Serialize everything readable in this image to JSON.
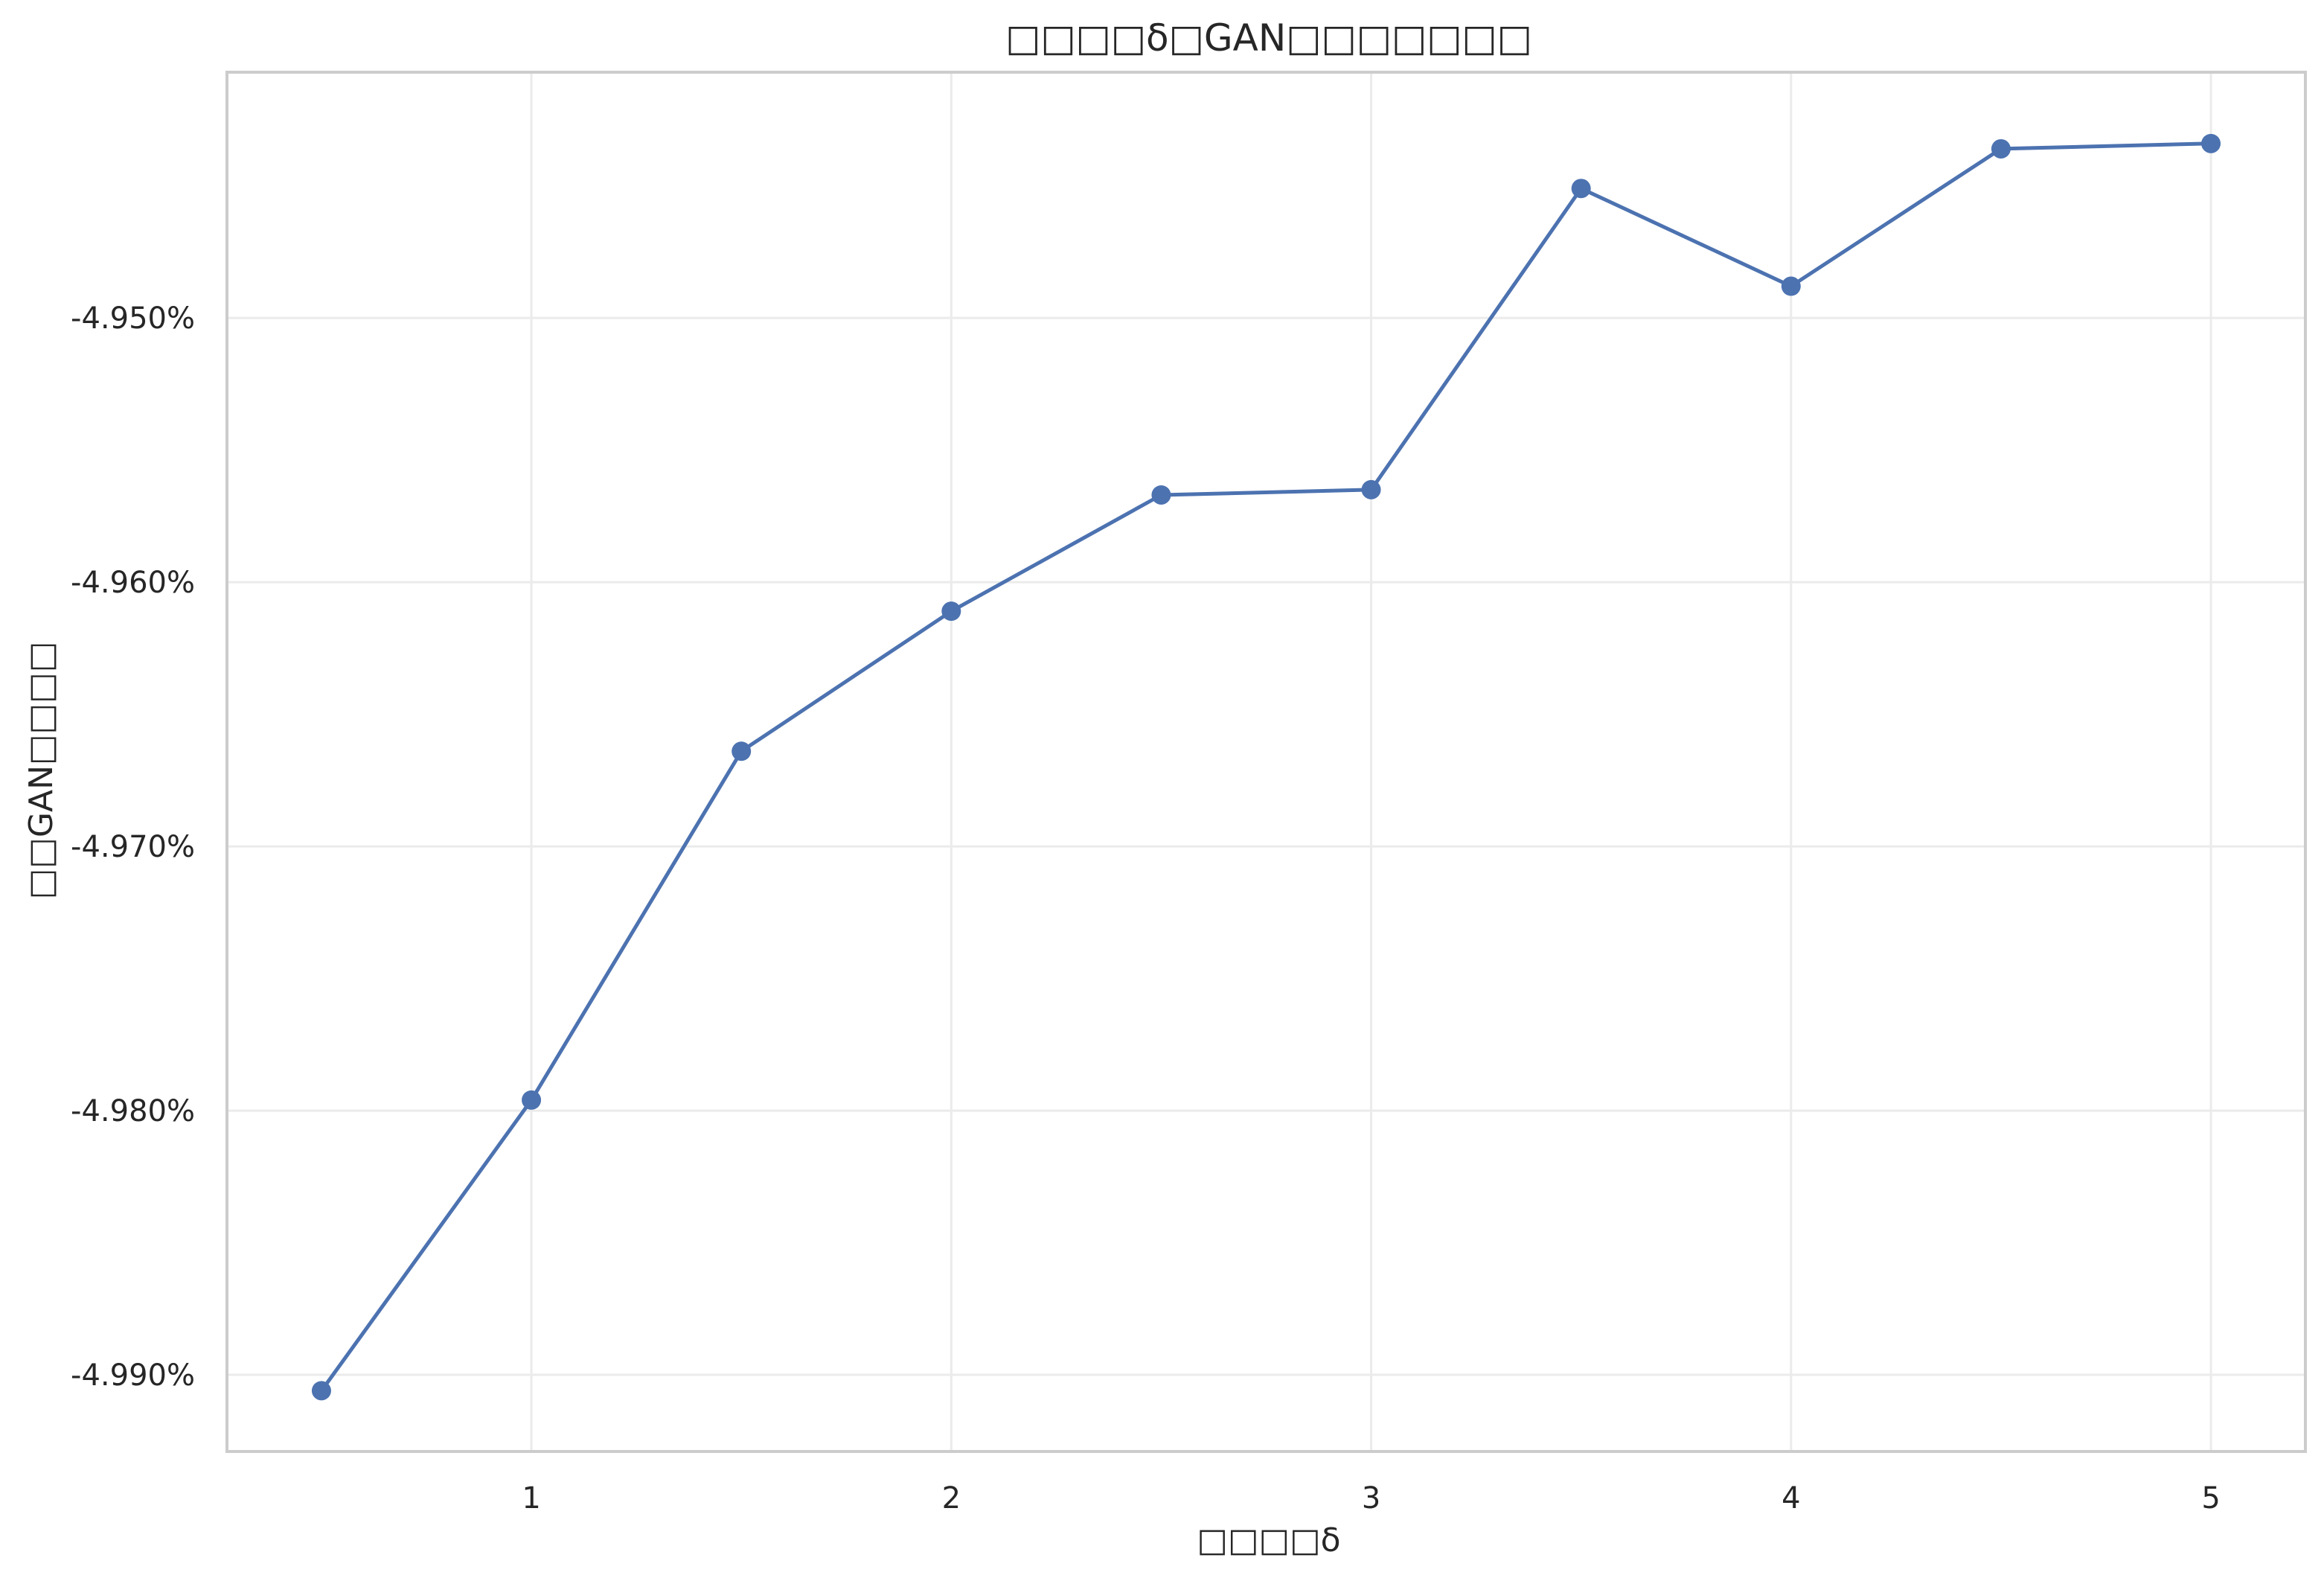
{
  "chart_data": {
    "type": "line",
    "title": "□□□□δ□GAN□□□□□□□",
    "xlabel": "□□□□δ",
    "ylabel": "□□GAN□□□□",
    "x": [
      0.5,
      1.0,
      1.5,
      2.0,
      2.5,
      3.0,
      3.5,
      4.0,
      4.5,
      5.0
    ],
    "series": [
      {
        "values": [
          -4.9906,
          -4.9796,
          -4.9664,
          -4.9611,
          -4.9567,
          -4.9565,
          -4.9451,
          -4.9488,
          -4.9436,
          -4.9434
        ]
      }
    ],
    "xlim": [
      0.275,
      5.225
    ],
    "ylim": [
      -4.9929,
      -4.9407
    ],
    "x_ticks": [
      1,
      2,
      3,
      4,
      5
    ],
    "x_tick_labels": [
      "1",
      "2",
      "3",
      "4",
      "5"
    ],
    "y_ticks": [
      -4.99,
      -4.98,
      -4.97,
      -4.96,
      -4.95
    ],
    "y_tick_labels": [
      "-4.990%",
      "-4.980%",
      "-4.970%",
      "-4.960%",
      "-4.950%"
    ],
    "grid": true,
    "legend": "none",
    "colors": {
      "line": "#4c72b0",
      "marker": "#4c72b0",
      "grid": "#ebebeb",
      "frame": "#cccccc",
      "text": "#262626"
    }
  }
}
